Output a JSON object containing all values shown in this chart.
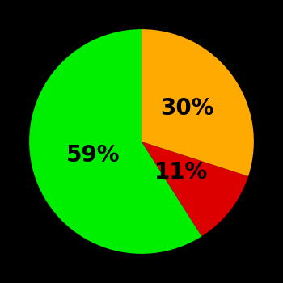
{
  "slices": [
    59,
    11,
    30
  ],
  "colors": [
    "#00ee00",
    "#dd0000",
    "#ffaa00"
  ],
  "labels": [
    "59%",
    "11%",
    "30%"
  ],
  "label_r": [
    0.45,
    0.45,
    0.5
  ],
  "background_color": "#000000",
  "text_color": "#000000",
  "font_size": 20,
  "font_weight": "bold",
  "startangle": 90,
  "figsize": [
    3.5,
    3.5
  ],
  "dpi": 100
}
